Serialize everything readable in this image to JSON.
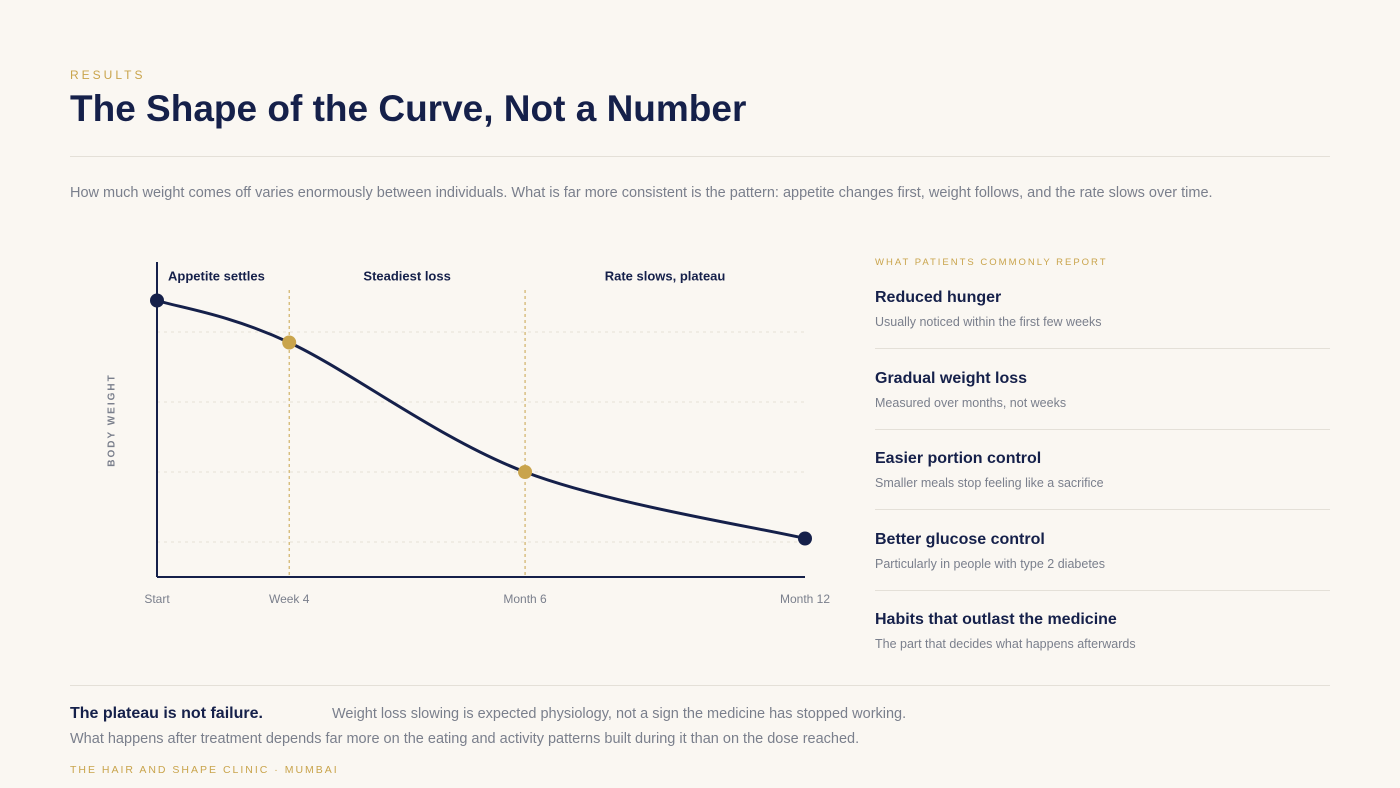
{
  "header": {
    "eyebrow": "RESULTS",
    "title": "The Shape of the Curve, Not a Number",
    "intro": "How much weight comes off varies enormously between individuals. What is far more consistent is the pattern: appetite changes first, weight follows, and the rate slows over time."
  },
  "chart_data": {
    "type": "line",
    "y_label": "BODY WEIGHT",
    "categories": [
      "Start",
      "Week 4",
      "Month 6",
      "Month 12"
    ],
    "series": [
      {
        "values": [
          7.9,
          6.7,
          3,
          1.1
        ],
        "color": "#15204a",
        "marker_colors": [
          "#15204a",
          "#c9a44c",
          "#c9a44c",
          "#15204a"
        ]
      }
    ],
    "ylim": [
      0,
      9
    ],
    "yticks": [
      1,
      3,
      5,
      7
    ],
    "grid": true,
    "annotations": [
      "Appetite settles",
      "Steadiest loss",
      "Rate slows, plateau"
    ]
  },
  "sidebar": {
    "heading": "WHAT PATIENTS COMMONLY REPORT",
    "items": [
      {
        "title": "Reduced hunger",
        "text": "Usually noticed within the first few weeks"
      },
      {
        "title": "Gradual weight loss",
        "text": "Measured over months, not weeks"
      },
      {
        "title": "Easier portion control",
        "text": "Smaller meals stop feeling like a sacrifice"
      },
      {
        "title": "Better glucose control",
        "text": "Particularly in people with type 2 diabetes"
      },
      {
        "title": "Habits that outlast the medicine",
        "text": "The part that decides what happens afterwards"
      }
    ]
  },
  "footer": {
    "lead": "The plateau is not failure.",
    "text1": "Weight loss slowing is expected physiology, not a sign the medicine has stopped working.",
    "text2": "What happens after treatment depends far more on the eating and activity patterns built during it than on the dose reached.",
    "brand": "THE HAIR AND SHAPE CLINIC · MUMBAI"
  }
}
